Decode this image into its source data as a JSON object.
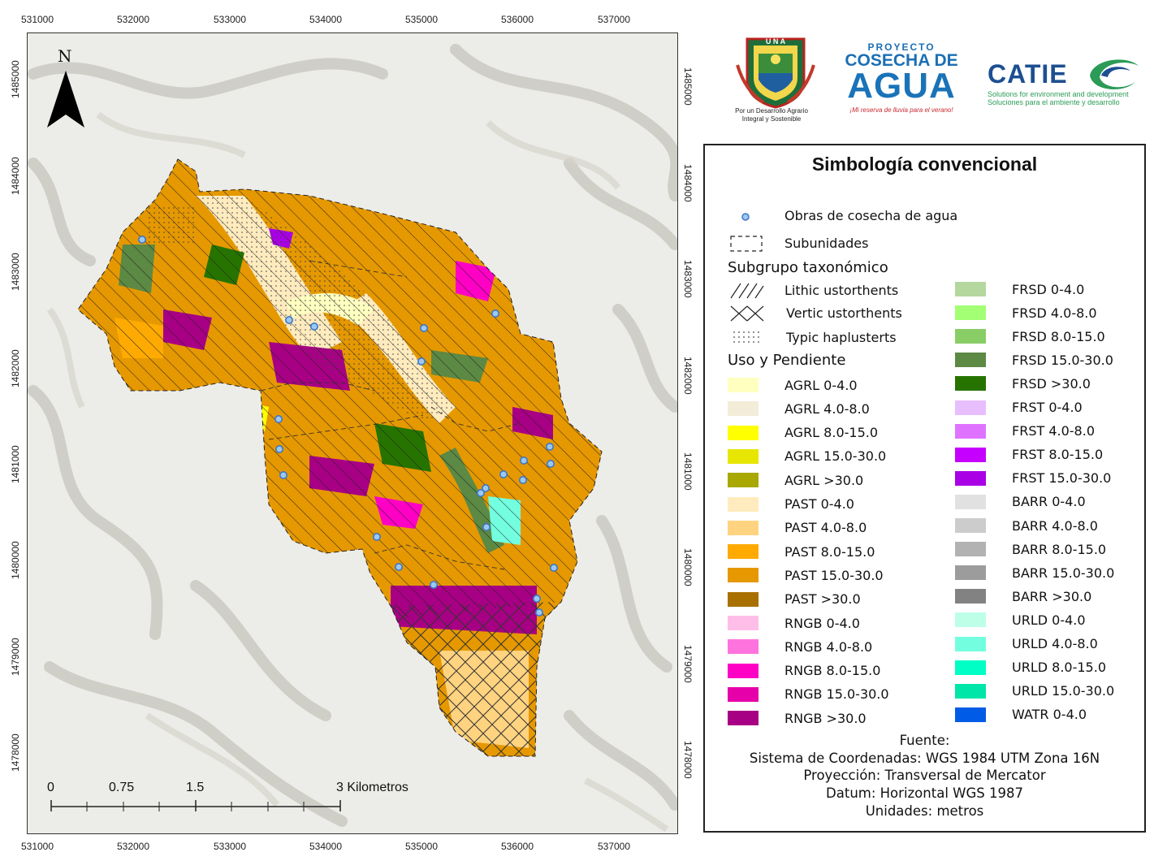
{
  "axes": {
    "x_ticks": [
      "531000",
      "532000",
      "533000",
      "534000",
      "535000",
      "536000",
      "537000"
    ],
    "y_ticks": [
      "1485000",
      "1484000",
      "1483000",
      "1482000",
      "1481000",
      "1480000",
      "1479000",
      "1478000"
    ]
  },
  "map": {
    "north_label": "N",
    "scale_labels": [
      "0",
      "0.75",
      "1.5",
      "3 Kilometros"
    ],
    "water_harvest_points": [
      [
        174,
        294
      ],
      [
        355,
        393
      ],
      [
        386,
        401
      ],
      [
        521,
        403
      ],
      [
        609,
        385
      ],
      [
        518,
        444
      ],
      [
        342,
        515
      ],
      [
        343,
        552
      ],
      [
        348,
        584
      ],
      [
        676,
        549
      ],
      [
        677,
        570
      ],
      [
        644,
        566
      ],
      [
        619,
        583
      ],
      [
        643,
        590
      ],
      [
        597,
        600
      ],
      [
        591,
        606
      ],
      [
        598,
        648
      ],
      [
        463,
        660
      ],
      [
        490,
        697
      ],
      [
        533,
        719
      ],
      [
        681,
        698
      ],
      [
        660,
        736
      ],
      [
        663,
        753
      ]
    ]
  },
  "logos": {
    "una_text": "U N A",
    "una_caption_1": "Por un Desarrollo Agrario",
    "una_caption_2": "Integral y Sostenible",
    "cosecha_proyecto": "PROYECTO",
    "cosecha_cosecha": "COSECHA DE",
    "cosecha_agua": "AGUA",
    "cosecha_tag": "¡Mi reserva de lluvia para el verano!",
    "catie_name": "CATIE",
    "catie_sub_1": "Solutions for environment and development",
    "catie_sub_2": "Soluciones para el ambiente y desarrollo"
  },
  "legend": {
    "title": "Simbología convencional",
    "obras_label": "Obras de cosecha de agua",
    "subunidades_label": "Subunidades",
    "subgrupo_heading": "Subgrupo taxonómico",
    "lithic_label": "Lithic ustorthents",
    "vertic_label": "Vertic ustorthents",
    "typic_label": "Typic haplusterts",
    "uso_heading": "Uso y Pendiente",
    "left_column": [
      {
        "label": "AGRL 0-4.0",
        "color": "#ffffc0"
      },
      {
        "label": "AGRL 4.0-8.0",
        "color": "#f3ecd9"
      },
      {
        "label": "AGRL 8.0-15.0",
        "color": "#ffff00"
      },
      {
        "label": "AGRL 15.0-30.0",
        "color": "#e6e600"
      },
      {
        "label": "AGRL >30.0",
        "color": "#a8a800"
      },
      {
        "label": "PAST 0-4.0",
        "color": "#ffebbe"
      },
      {
        "label": "PAST 4.0-8.0",
        "color": "#ffd37f"
      },
      {
        "label": "PAST 8.0-15.0",
        "color": "#ffaa00"
      },
      {
        "label": "PAST 15.0-30.0",
        "color": "#e69800"
      },
      {
        "label": "PAST >30.0",
        "color": "#a87000"
      },
      {
        "label": "RNGB 0-4.0",
        "color": "#ffbee8"
      },
      {
        "label": "RNGB 4.0-8.0",
        "color": "#ff73df"
      },
      {
        "label": "RNGB 8.0-15.0",
        "color": "#ff00c5"
      },
      {
        "label": "RNGB 15.0-30.0",
        "color": "#e600a9"
      },
      {
        "label": "RNGB >30.0",
        "color": "#a80084"
      }
    ],
    "right_column": [
      {
        "label": "FRSD 0-4.0",
        "color": "#b4d79e"
      },
      {
        "label": "FRSD 4.0-8.0",
        "color": "#a3ff73"
      },
      {
        "label": "FRSD 8.0-15.0",
        "color": "#89cd66"
      },
      {
        "label": "FRSD 15.0-30.0",
        "color": "#5c8944"
      },
      {
        "label": "FRSD >30.0",
        "color": "#267300"
      },
      {
        "label": "FRST 0-4.0",
        "color": "#e8beff"
      },
      {
        "label": "FRST 4.0-8.0",
        "color": "#df73ff"
      },
      {
        "label": "FRST 8.0-15.0",
        "color": "#c500ff"
      },
      {
        "label": "FRST 15.0-30.0",
        "color": "#a900e6"
      },
      {
        "label": "BARR 0-4.0",
        "color": "#e1e1e1"
      },
      {
        "label": "BARR 4.0-8.0",
        "color": "#cccccc"
      },
      {
        "label": "BARR 8.0-15.0",
        "color": "#b2b2b2"
      },
      {
        "label": "BARR 15.0-30.0",
        "color": "#9c9c9c"
      },
      {
        "label": "BARR >30.0",
        "color": "#828282"
      },
      {
        "label": "URLD 0-4.0",
        "color": "#beffe8"
      },
      {
        "label": "URLD 4.0-8.0",
        "color": "#73ffdf"
      },
      {
        "label": "URLD 8.0-15.0",
        "color": "#00ffc5"
      },
      {
        "label": "URLD 15.0-30.0",
        "color": "#00e6a9"
      },
      {
        "label": "WATR 0-4.0",
        "color": "#005ce6"
      }
    ],
    "source_lines": [
      "Fuente:",
      "Sistema de Coordenadas: WGS 1984 UTM Zona 16N",
      "Proyección: Transversal de Mercator",
      "Datum: Horizontal WGS 1987",
      "Unidades: metros"
    ]
  }
}
